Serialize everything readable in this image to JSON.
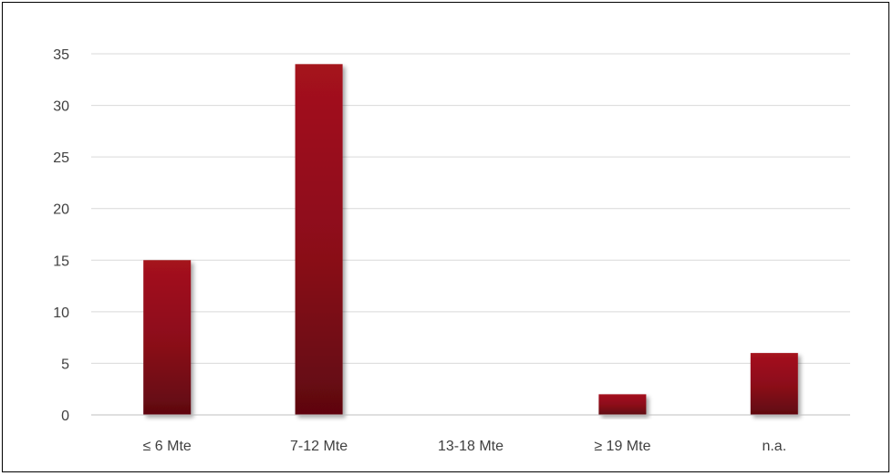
{
  "chart_data": {
    "type": "bar",
    "categories": [
      "≤ 6 Mte",
      "7-12 Mte",
      "13-18 Mte",
      "≥ 19 Mte",
      "n.a."
    ],
    "values": [
      15,
      34,
      0,
      2,
      6
    ],
    "yticks": [
      "0",
      "5",
      "10",
      "15",
      "20",
      "25",
      "30",
      "35"
    ],
    "ylim": [
      0,
      35
    ],
    "grid": true,
    "legend": "none",
    "colors": {
      "bar_top": "#a5121f",
      "bar_bottom": "#5e0610"
    }
  }
}
